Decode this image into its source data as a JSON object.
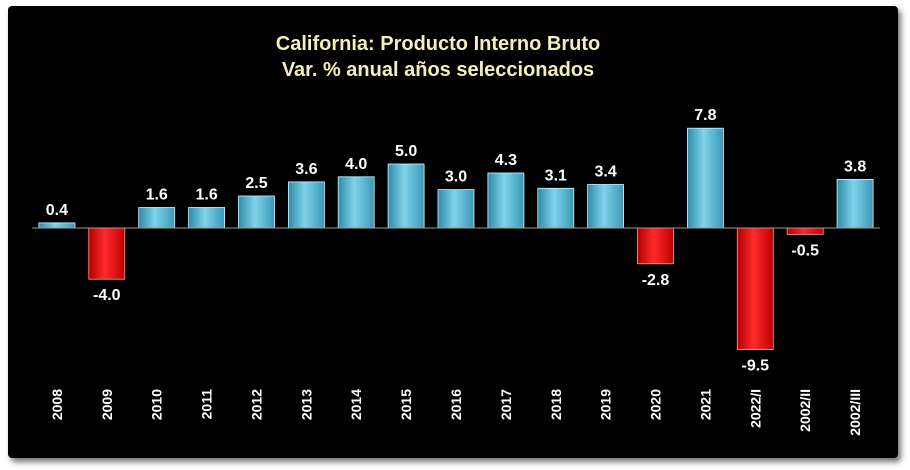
{
  "chart_data": {
    "type": "bar",
    "title": "California: Producto Interno Bruto",
    "subtitle": "Var. % anual años seleccionados",
    "categories": [
      "2008",
      "2009",
      "2010",
      "2011",
      "2012",
      "2013",
      "2014",
      "2015",
      "2016",
      "2017",
      "2018",
      "2019",
      "2020",
      "2021",
      "2022/I",
      "2002/II",
      "2002/III"
    ],
    "values": [
      0.4,
      -4.0,
      1.6,
      1.6,
      2.5,
      3.6,
      4.0,
      5.0,
      3.0,
      4.3,
      3.1,
      3.4,
      -2.8,
      7.8,
      -9.5,
      -0.5,
      3.8
    ],
    "value_labels": [
      "0.4",
      "-4.0",
      "1.6",
      "1.6",
      "2.5",
      "3.6",
      "4.0",
      "5.0",
      "3.0",
      "4.3",
      "3.1",
      "3.4",
      "-2.8",
      "7.8",
      "-9.5",
      "-0.5",
      "3.8"
    ],
    "colors": {
      "positive": "#5bbcd6",
      "negative": "#e80000",
      "background": "#000000",
      "title": "#f5f0b8"
    },
    "grid": false,
    "legend": "none"
  }
}
